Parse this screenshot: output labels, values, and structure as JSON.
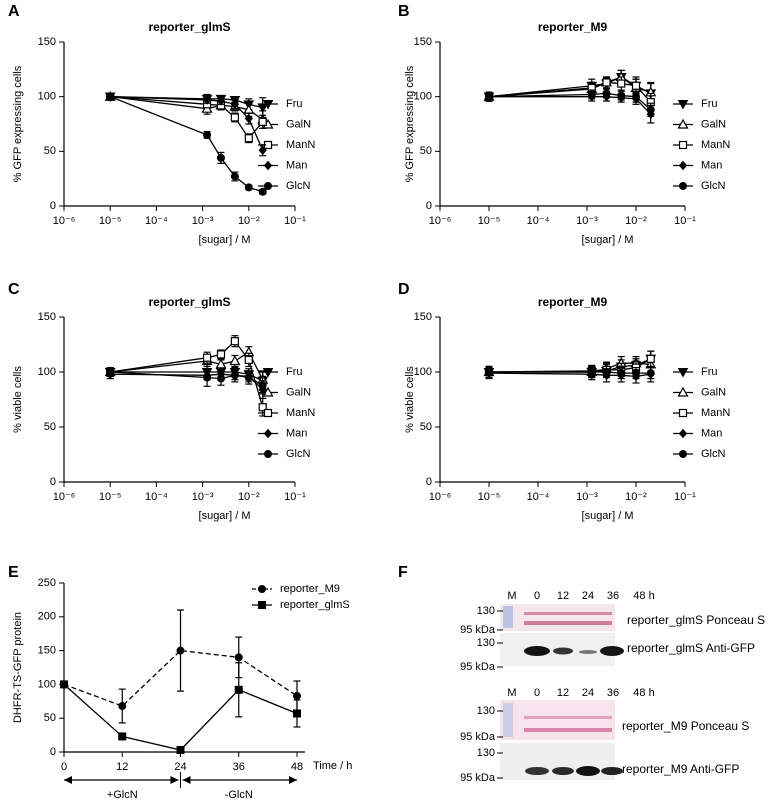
{
  "chart_data": [
    {
      "type": "line",
      "panel_label": "A",
      "title": "reporter_glmS",
      "y_label": "% GFP expressing cells",
      "x_label": "[sugar] / M",
      "xlog": true,
      "xlim": [
        1e-06,
        0.1
      ],
      "xticks": [
        {
          "value": 1e-06,
          "label": "10⁻⁶"
        },
        {
          "value": 1e-05,
          "label": "10⁻⁵"
        },
        {
          "value": 0.0001,
          "label": "10⁻⁴"
        },
        {
          "value": 0.001,
          "label": "10⁻³"
        },
        {
          "value": 0.01,
          "label": "10⁻²"
        },
        {
          "value": 0.1,
          "label": "10⁻¹"
        }
      ],
      "ylim": [
        0,
        150
      ],
      "yticks": [
        0,
        50,
        100,
        150
      ],
      "x": [
        1e-05,
        0.00125,
        0.0025,
        0.005,
        0.01,
        0.02
      ],
      "series": [
        {
          "name": "Fru",
          "color": "#000000",
          "marker": "tri-down",
          "values": [
            100,
            98,
            98,
            97,
            93,
            90
          ],
          "errors": [
            3,
            4,
            3,
            3,
            5,
            9
          ]
        },
        {
          "name": "GalN",
          "color": "#000000",
          "marker": "tri-up-open",
          "values": [
            100,
            89,
            92,
            91,
            88,
            79
          ],
          "errors": [
            3,
            5,
            4,
            4,
            6,
            8
          ]
        },
        {
          "name": "ManN",
          "color": "#000000",
          "marker": "square-open",
          "values": [
            100,
            93,
            92,
            81,
            62,
            77
          ],
          "errors": [
            3,
            3,
            4,
            4,
            4,
            6
          ]
        },
        {
          "name": "Man",
          "color": "#000000",
          "marker": "diamond",
          "values": [
            100,
            97,
            96,
            93,
            80,
            51
          ],
          "errors": [
            3,
            3,
            3,
            4,
            5,
            5
          ]
        },
        {
          "name": "GlcN",
          "color": "#000000",
          "marker": "circle",
          "values": [
            100,
            65,
            44,
            27,
            17,
            13
          ],
          "errors": [
            3,
            3,
            5,
            4,
            2,
            2
          ]
        }
      ]
    },
    {
      "type": "line",
      "panel_label": "B",
      "title": "reporter_M9",
      "y_label": "% GFP expressing cells",
      "x_label": "[sugar] / M",
      "xlog": true,
      "xlim": [
        1e-06,
        0.1
      ],
      "xticks": [
        {
          "value": 1e-06,
          "label": "10⁻⁶"
        },
        {
          "value": 1e-05,
          "label": "10⁻⁵"
        },
        {
          "value": 0.0001,
          "label": "10⁻⁴"
        },
        {
          "value": 0.001,
          "label": "10⁻³"
        },
        {
          "value": 0.01,
          "label": "10⁻²"
        },
        {
          "value": 0.1,
          "label": "10⁻¹"
        }
      ],
      "ylim": [
        0,
        150
      ],
      "yticks": [
        0,
        50,
        100,
        150
      ],
      "x": [
        1e-05,
        0.00125,
        0.0025,
        0.005,
        0.01,
        0.02
      ],
      "series": [
        {
          "name": "Fru",
          "color": "#000000",
          "marker": "tri-down",
          "values": [
            100,
            110,
            112,
            118,
            110,
            103
          ],
          "errors": [
            4,
            6,
            5,
            6,
            8,
            10
          ]
        },
        {
          "name": "GalN",
          "color": "#000000",
          "marker": "tri-up-open",
          "values": [
            100,
            107,
            113,
            118,
            108,
            104
          ],
          "errors": [
            4,
            6,
            5,
            6,
            8,
            8
          ]
        },
        {
          "name": "ManN",
          "color": "#000000",
          "marker": "square-open",
          "values": [
            100,
            108,
            113,
            112,
            110,
            95
          ],
          "errors": [
            4,
            5,
            5,
            6,
            6,
            8
          ]
        },
        {
          "name": "Man",
          "color": "#000000",
          "marker": "diamond",
          "values": [
            100,
            100,
            100,
            99,
            98,
            84
          ],
          "errors": [
            4,
            4,
            4,
            4,
            5,
            8
          ]
        },
        {
          "name": "GlcN",
          "color": "#000000",
          "marker": "circle",
          "values": [
            100,
            102,
            103,
            101,
            100,
            88
          ],
          "errors": [
            4,
            4,
            4,
            4,
            5,
            6
          ]
        }
      ]
    },
    {
      "type": "line",
      "panel_label": "C",
      "title": "reporter_glmS",
      "y_label": "% viable cells",
      "x_label": "[sugar] / M",
      "xlog": true,
      "xlim": [
        1e-06,
        0.1
      ],
      "xticks": [
        {
          "value": 1e-06,
          "label": "10⁻⁶"
        },
        {
          "value": 1e-05,
          "label": "10⁻⁵"
        },
        {
          "value": 0.0001,
          "label": "10⁻⁴"
        },
        {
          "value": 0.001,
          "label": "10⁻³"
        },
        {
          "value": 0.01,
          "label": "10⁻²"
        },
        {
          "value": 0.1,
          "label": "10⁻¹"
        }
      ],
      "ylim": [
        0,
        150
      ],
      "yticks": [
        0,
        50,
        100,
        150
      ],
      "x": [
        1e-05,
        0.00125,
        0.0025,
        0.005,
        0.01,
        0.02
      ],
      "series": [
        {
          "name": "Fru",
          "color": "#000000",
          "marker": "tri-down",
          "values": [
            100,
            100,
            100,
            100,
            98,
            92
          ],
          "errors": [
            4,
            5,
            4,
            4,
            5,
            8
          ]
        },
        {
          "name": "GalN",
          "color": "#000000",
          "marker": "tri-up-open",
          "values": [
            100,
            110,
            107,
            110,
            118,
            93
          ],
          "errors": [
            4,
            5,
            4,
            5,
            5,
            8
          ]
        },
        {
          "name": "ManN",
          "color": "#000000",
          "marker": "square-open",
          "values": [
            100,
            113,
            116,
            128,
            111,
            68
          ],
          "errors": [
            4,
            5,
            4,
            5,
            6,
            8
          ]
        },
        {
          "name": "Man",
          "color": "#000000",
          "marker": "diamond",
          "values": [
            98,
            97,
            98,
            97,
            96,
            84
          ],
          "errors": [
            4,
            4,
            4,
            4,
            5,
            8
          ]
        },
        {
          "name": "GlcN",
          "color": "#000000",
          "marker": "circle",
          "values": [
            100,
            95,
            94,
            97,
            95,
            88
          ],
          "errors": [
            4,
            8,
            6,
            6,
            6,
            8
          ]
        }
      ]
    },
    {
      "type": "line",
      "panel_label": "D",
      "title": "reporter_M9",
      "y_label": "% viable cells",
      "x_label": "[sugar] / M",
      "xlog": true,
      "xlim": [
        1e-06,
        0.1
      ],
      "xticks": [
        {
          "value": 1e-06,
          "label": "10⁻⁶"
        },
        {
          "value": 1e-05,
          "label": "10⁻⁵"
        },
        {
          "value": 0.0001,
          "label": "10⁻⁴"
        },
        {
          "value": 0.001,
          "label": "10⁻³"
        },
        {
          "value": 0.01,
          "label": "10⁻²"
        },
        {
          "value": 0.1,
          "label": "10⁻¹"
        }
      ],
      "ylim": [
        0,
        150
      ],
      "yticks": [
        0,
        50,
        100,
        150
      ],
      "x": [
        1e-05,
        0.00125,
        0.0025,
        0.005,
        0.01,
        0.02
      ],
      "series": [
        {
          "name": "Fru",
          "color": "#000000",
          "marker": "tri-down",
          "values": [
            100,
            100,
            101,
            105,
            106,
            112
          ],
          "errors": [
            5,
            5,
            6,
            6,
            6,
            7
          ]
        },
        {
          "name": "GalN",
          "color": "#000000",
          "marker": "tri-up-open",
          "values": [
            100,
            100,
            103,
            108,
            108,
            107
          ],
          "errors": [
            5,
            5,
            6,
            6,
            6,
            7
          ]
        },
        {
          "name": "ManN",
          "color": "#000000",
          "marker": "square-open",
          "values": [
            100,
            101,
            102,
            102,
            104,
            112
          ],
          "errors": [
            5,
            5,
            6,
            6,
            6,
            7
          ]
        },
        {
          "name": "Man",
          "color": "#000000",
          "marker": "diamond",
          "values": [
            99,
            98,
            97,
            97,
            96,
            98
          ],
          "errors": [
            5,
            5,
            6,
            6,
            6,
            7
          ]
        },
        {
          "name": "GlcN",
          "color": "#000000",
          "marker": "circle",
          "values": [
            100,
            100,
            100,
            99,
            99,
            99
          ],
          "errors": [
            5,
            5,
            5,
            5,
            5,
            5
          ]
        }
      ]
    },
    {
      "type": "line",
      "panel_label": "E",
      "y_label": "DHFR-TS-GFP protein",
      "x_label": "Time / h",
      "xlog": false,
      "xlim": [
        0,
        48
      ],
      "xticks": [
        0,
        12,
        24,
        36,
        48
      ],
      "ylim": [
        0,
        250
      ],
      "yticks": [
        0,
        50,
        100,
        150,
        200,
        250
      ],
      "x": [
        0,
        12,
        24,
        36,
        48
      ],
      "annotations": [
        "+GlcN",
        "-GlcN"
      ],
      "series": [
        {
          "name": "reporter_M9",
          "color": "#000000",
          "marker": "circle",
          "dash": true,
          "values": [
            100,
            68,
            150,
            140,
            83
          ],
          "errors": [
            0,
            25,
            60,
            30,
            22
          ]
        },
        {
          "name": "reporter_glmS",
          "color": "#000000",
          "marker": "square",
          "dash": false,
          "values": [
            100,
            23,
            3,
            92,
            57
          ],
          "errors": [
            0,
            2,
            2,
            40,
            20
          ]
        }
      ]
    }
  ],
  "blot": {
    "panel_label": "F",
    "top": {
      "marker_lane": "M",
      "lanes": [
        "0",
        "12",
        "24",
        "36",
        "48 h"
      ],
      "ponceau_markers": [
        "130",
        "95 kDa"
      ],
      "ponceau_label": "reporter_glmS Ponceau S",
      "antigfp_markers": [
        "130",
        "95 kDa"
      ],
      "antigfp_label": "reporter_glmS Anti-GFP"
    },
    "bottom": {
      "marker_lane": "M",
      "lanes": [
        "0",
        "12",
        "24",
        "36",
        "48 h"
      ],
      "ponceau_markers": [
        "130",
        "95 kDa"
      ],
      "ponceau_label": "reporter_M9 Ponceau S",
      "antigfp_markers": [
        "130",
        "95 kDa"
      ],
      "antigfp_label": "reporter_M9 Anti-GFP"
    }
  }
}
